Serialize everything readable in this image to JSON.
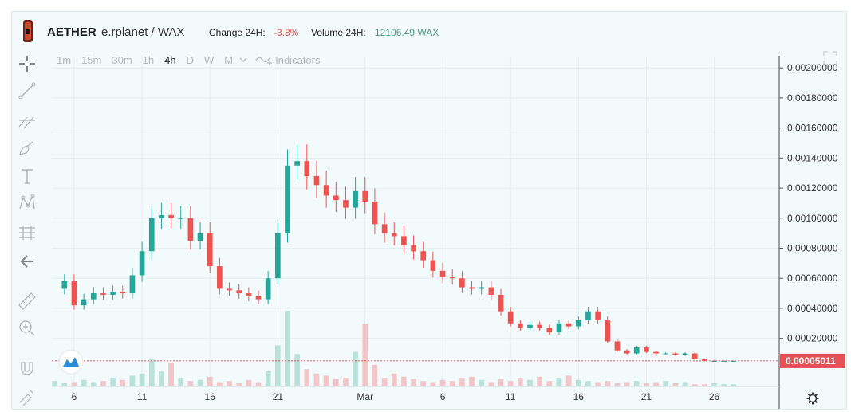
{
  "header": {
    "symbol": "AETHER",
    "pair": "e.rplanet / WAX",
    "change_label": "Change 24H:",
    "change_value": "-3.8%",
    "volume_label": "Volume 24H:",
    "volume_value": "12106.49 WAX"
  },
  "toolbar": {
    "timeframes": [
      "1m",
      "15m",
      "30m",
      "1h",
      "4h",
      "D",
      "W",
      "M"
    ],
    "active_timeframe": "4h",
    "indicators_label": "Indicators"
  },
  "colors": {
    "up": "#26a69a",
    "down": "#ef5350",
    "grid": "#e6eef1",
    "price_marker": "#e35355"
  },
  "chart_data": {
    "type": "candlestick",
    "title": "",
    "xlabel": "",
    "ylabel": "",
    "x_ticks": [
      "6",
      "11",
      "16",
      "21",
      "Mar",
      "6",
      "11",
      "16",
      "21",
      "26"
    ],
    "y_ticks": [
      "0.00200000",
      "0.00180000",
      "0.00160000",
      "0.00140000",
      "0.00120000",
      "0.00100000",
      "0.00080000",
      "0.00060000",
      "0.00040000",
      "0.00020000"
    ],
    "ylim": [
      -0.00012,
      0.00207
    ],
    "current_price": "0.00005011",
    "price_series": [
      [
        0,
        0.00053
      ],
      [
        1,
        0.00058
      ],
      [
        2,
        0.00042
      ],
      [
        3,
        0.00046
      ],
      [
        4,
        0.0005
      ],
      [
        5,
        0.00049
      ],
      [
        6,
        0.00051
      ],
      [
        7,
        0.0005
      ],
      [
        8,
        0.00062
      ],
      [
        9,
        0.00078
      ],
      [
        10,
        0.001
      ],
      [
        11,
        0.00102
      ],
      [
        12,
        0.001
      ],
      [
        13,
        0.001
      ],
      [
        14,
        0.00085
      ],
      [
        15,
        0.0009
      ],
      [
        16,
        0.00068
      ],
      [
        17,
        0.00053
      ],
      [
        18,
        0.00052
      ],
      [
        19,
        0.0005
      ],
      [
        20,
        0.00048
      ],
      [
        21,
        0.00046
      ],
      [
        22,
        0.0006
      ],
      [
        23,
        0.0009
      ],
      [
        24,
        0.00135
      ],
      [
        25,
        0.00138
      ],
      [
        26,
        0.00128
      ],
      [
        27,
        0.00122
      ],
      [
        28,
        0.00115
      ],
      [
        29,
        0.00112
      ],
      [
        30,
        0.00107
      ],
      [
        31,
        0.00118
      ],
      [
        32,
        0.00111
      ],
      [
        33,
        0.00096
      ],
      [
        34,
        0.0009
      ],
      [
        35,
        0.00088
      ],
      [
        36,
        0.00082
      ],
      [
        37,
        0.00078
      ],
      [
        38,
        0.00072
      ],
      [
        39,
        0.00065
      ],
      [
        40,
        0.00061
      ],
      [
        41,
        0.0006
      ],
      [
        42,
        0.00054
      ],
      [
        43,
        0.00053
      ],
      [
        44,
        0.00054
      ],
      [
        45,
        0.00049
      ],
      [
        46,
        0.00038
      ],
      [
        47,
        0.0003
      ],
      [
        48,
        0.00027
      ],
      [
        49,
        0.00029
      ],
      [
        50,
        0.00027
      ],
      [
        51,
        0.00024
      ],
      [
        52,
        0.0003
      ],
      [
        53,
        0.00028
      ],
      [
        54,
        0.00032
      ],
      [
        55,
        0.00038
      ],
      [
        56,
        0.00032
      ],
      [
        57,
        0.00018
      ],
      [
        58,
        0.00012
      ],
      [
        59,
        0.0001
      ],
      [
        60,
        0.00014
      ],
      [
        61,
        0.00011
      ],
      [
        62,
        0.0001
      ],
      [
        63,
        0.0001
      ],
      [
        64,
        9e-05
      ],
      [
        65,
        0.0001
      ],
      [
        66,
        6e-05
      ],
      [
        67,
        5e-05
      ],
      [
        68,
        5e-05
      ],
      [
        69,
        5e-05
      ],
      [
        70,
        5e-05
      ]
    ],
    "x_axis": {
      "tick_positions": [
        2,
        9,
        16,
        23,
        32,
        40,
        47,
        54,
        61,
        68
      ],
      "x_max": 75
    },
    "volume_series": [
      5,
      3,
      4,
      6,
      4,
      5,
      8,
      6,
      10,
      12,
      26,
      14,
      22,
      8,
      5,
      6,
      9,
      4,
      5,
      3,
      6,
      4,
      14,
      38,
      70,
      30,
      16,
      12,
      10,
      7,
      8,
      32,
      58,
      20,
      8,
      12,
      9,
      7,
      5,
      4,
      6,
      5,
      8,
      9,
      6,
      4,
      7,
      5,
      8,
      6,
      9,
      5,
      8,
      10,
      6,
      5,
      4,
      5,
      3,
      4,
      5,
      3,
      4,
      5,
      3,
      4,
      2,
      2,
      3,
      2,
      2
    ],
    "grid": true,
    "legend": "none"
  }
}
